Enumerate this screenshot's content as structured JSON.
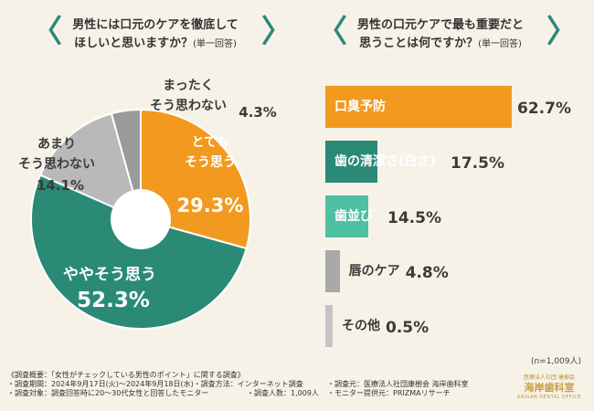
{
  "left_title": {
    "line1": "男性には口元のケアを徹底して",
    "line2": "ほしいと思いますか？",
    "note": "(単一回答)"
  },
  "right_title": {
    "line1": "男性の口元ケアで最も重要だと",
    "line2": "思うことは何ですか？",
    "note": "(単一回答)"
  },
  "chart_data": [
    {
      "type": "pie",
      "title": "男性には口元のケアを徹底してほしいと思いますか？(単一回答)",
      "categories": [
        "とてもそう思う",
        "ややそう思う",
        "あまりそう思わない",
        "まったくそう思わない"
      ],
      "labels": [
        [
          "とても",
          "そう思う"
        ],
        [
          "ややそう思う"
        ],
        [
          "あまり",
          "そう思わない"
        ],
        [
          "まったく",
          "そう思わない"
        ]
      ],
      "values": [
        29.3,
        52.3,
        14.1,
        4.3
      ],
      "value_labels": [
        "29.3%",
        "52.3%",
        "14.1%",
        "4.3%"
      ],
      "colors": [
        "#f29a1f",
        "#2a8a76",
        "#b9b9b9",
        "#9a9a9a"
      ]
    },
    {
      "type": "bar",
      "title": "男性の口元ケアで最も重要だと思うことは何ですか？(単一回答)",
      "categories": [
        "口臭予防",
        "歯の清潔さ(白さ)",
        "歯並び",
        "唇のケア",
        "その他"
      ],
      "values": [
        62.7,
        17.5,
        14.5,
        4.8,
        0.5
      ],
      "value_labels": [
        "62.7%",
        "17.5%",
        "14.5%",
        "4.8%",
        "0.5%"
      ],
      "colors": [
        "#f29a1f",
        "#2a8a76",
        "#4fbfa2",
        "#a9a9a9",
        "#c4c4c4"
      ],
      "xlim": [
        0,
        62.7
      ]
    }
  ],
  "n_note": "(n=1,009人)",
  "footer": {
    "l1": "《調査概要：「女性がチェックしている男性のポイント」に関する調査》",
    "l2a": "・調査期間：2024年9月17日(火)〜2024年9月18日(水)・調査方法：インターネット調査",
    "l2b": "・調査元：医療法人社団康樹会 海岸歯科室",
    "l3a": "・調査対象：調査回答時に20〜30代女性と回答したモニター",
    "l3m": "・調査人数：1,009人",
    "l3b": "・モニター提供元：PRIZMAリサーチ"
  },
  "logo": {
    "sub": "医療法人社団 康樹会",
    "main": "海岸歯科室",
    "en": "KAIGAN DENTAL OFFICE"
  }
}
